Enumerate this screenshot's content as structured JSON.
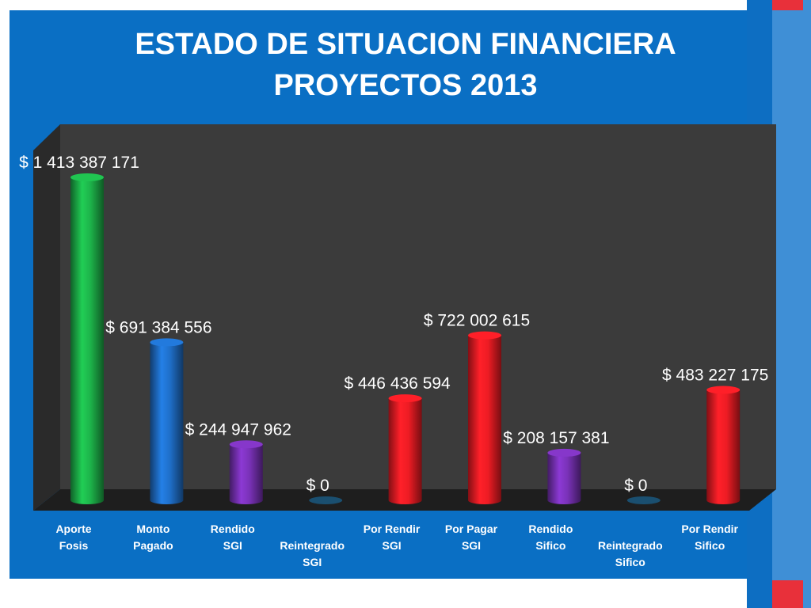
{
  "slide": {
    "title_line1": "ESTADO DE SITUACION FINANCIERA",
    "title_line2": "PROYECTOS 2013"
  },
  "chart_data": {
    "type": "bar",
    "title": "ESTADO DE SITUACION FINANCIERA PROYECTOS 2013",
    "xlabel": "",
    "ylabel": "",
    "ylim": [
      0,
      1500000000
    ],
    "grid": false,
    "legend": "none",
    "categories": [
      [
        "Aporte",
        "Fosis"
      ],
      [
        "Monto",
        "Pagado"
      ],
      [
        "Rendido",
        "SGI"
      ],
      [
        "Reintegrado",
        "SGI"
      ],
      [
        "Por Rendir",
        "SGI"
      ],
      [
        "Por Pagar",
        "SGI"
      ],
      [
        "Rendido",
        "Sifico"
      ],
      [
        "Reintegrado",
        "Sifico"
      ],
      [
        "Por Rendir",
        "Sifico"
      ]
    ],
    "values": [
      1413387171,
      691384556,
      244947962,
      0,
      446436594,
      722002615,
      208157381,
      0,
      483227175
    ],
    "data_labels": [
      "$ 1 413 387 171",
      "$ 691 384 556",
      "$ 244 947 962",
      "$ 0",
      "$ 446 436 594",
      "$ 722 002 615",
      "$ 208 157 381",
      "$ 0",
      "$ 483 227 175"
    ],
    "colors": [
      "#1db34a",
      "#1f6fc9",
      "#7a32b8",
      "#1a4f70",
      "#ee1c24",
      "#ee1c24",
      "#7a32b8",
      "#1a4f70",
      "#ee1c24"
    ]
  }
}
